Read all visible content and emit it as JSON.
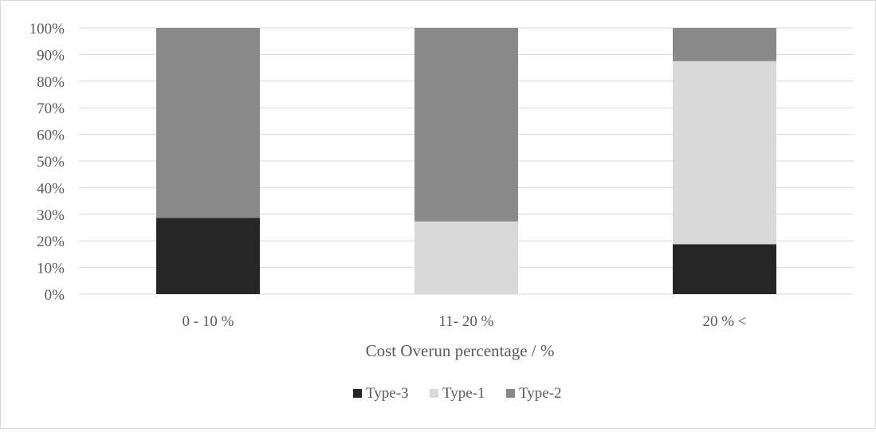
{
  "chart_data": {
    "type": "bar",
    "stacked": true,
    "percent_stacked": true,
    "categories": [
      "0 - 10 %",
      "11- 20 %",
      "20 % <"
    ],
    "series": [
      {
        "name": "Type-3",
        "color": "#262626",
        "values": [
          28.6,
          0,
          18.75
        ]
      },
      {
        "name": "Type-1",
        "color": "#d9d9d9",
        "values": [
          0,
          27.3,
          68.75
        ]
      },
      {
        "name": "Type-2",
        "color": "#898989",
        "values": [
          71.4,
          72.7,
          12.5
        ]
      }
    ],
    "y_ticks": [
      "0%",
      "10%",
      "20%",
      "30%",
      "40%",
      "50%",
      "60%",
      "70%",
      "80%",
      "90%",
      "100%"
    ],
    "ylim": [
      0,
      100
    ],
    "xlabel": "Cost Overun percentage / %",
    "ylabel": "",
    "grid": true,
    "legend_position": "bottom"
  }
}
